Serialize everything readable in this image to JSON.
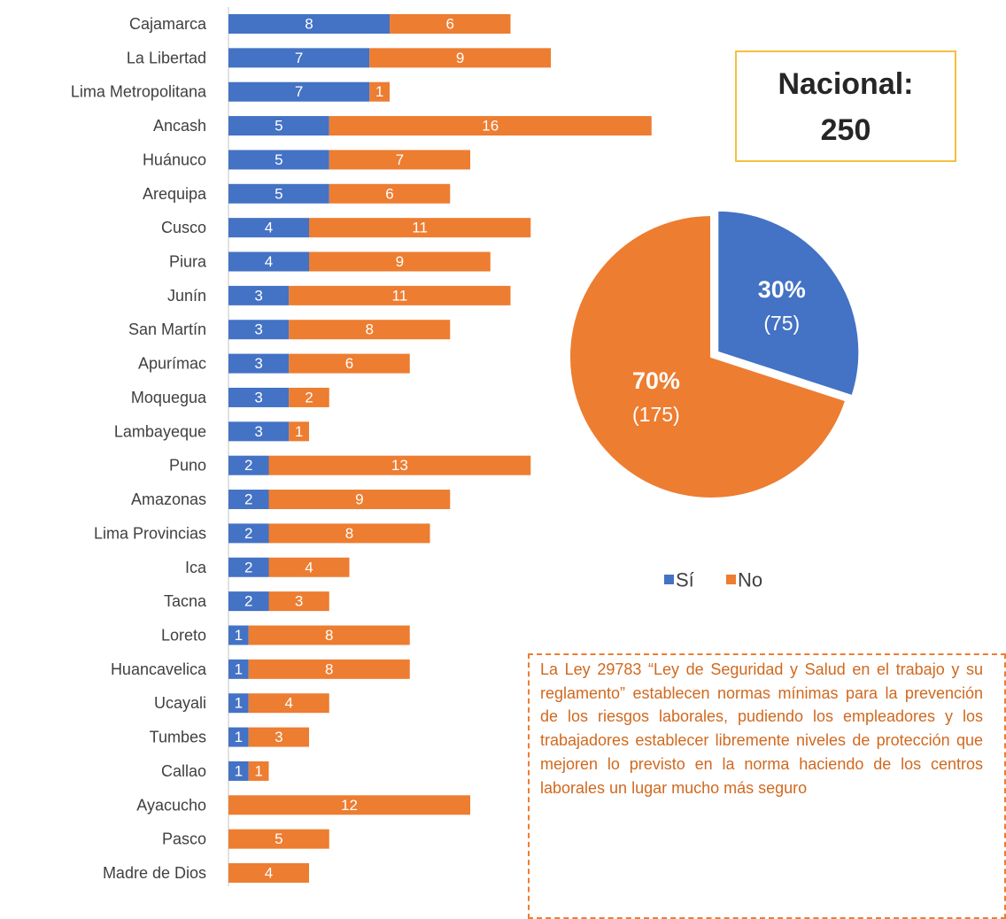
{
  "chart_data": [
    {
      "type": "bar",
      "orientation": "horizontal",
      "stacked": true,
      "categories": [
        "Cajamarca",
        "La Libertad",
        "Lima Metropolitana",
        "Ancash",
        "Huánuco",
        "Arequipa",
        "Cusco",
        "Piura",
        "Junín",
        "San Martín",
        "Apurímac",
        "Moquegua",
        "Lambayeque",
        "Puno",
        "Amazonas",
        "Lima Provincias",
        "Ica",
        "Tacna",
        "Loreto",
        "Huancavelica",
        "Ucayali",
        "Tumbes",
        "Callao",
        "Ayacucho",
        "Pasco",
        "Madre de Dios"
      ],
      "series": [
        {
          "name": "Sí",
          "color": "#4472c4",
          "values": [
            8,
            7,
            7,
            5,
            5,
            5,
            4,
            4,
            3,
            3,
            3,
            3,
            3,
            2,
            2,
            2,
            2,
            2,
            1,
            1,
            1,
            1,
            1,
            null,
            null,
            null
          ]
        },
        {
          "name": "No",
          "color": "#ed7d31",
          "values": [
            6,
            9,
            1,
            16,
            7,
            6,
            11,
            9,
            11,
            8,
            6,
            2,
            1,
            13,
            9,
            8,
            4,
            3,
            8,
            8,
            4,
            3,
            1,
            12,
            5,
            4
          ]
        }
      ],
      "legend": "bottom"
    },
    {
      "type": "pie",
      "values": [
        30,
        70
      ],
      "value_labels": [
        "30%",
        "70%"
      ],
      "counts": [
        75,
        175
      ],
      "count_labels": [
        "(75)",
        "(175)"
      ],
      "colors": [
        "#4472c4",
        "#ed7d31"
      ]
    }
  ],
  "national_label": "Nacional:",
  "national_total": 250,
  "note": "La Ley 29783 “Ley de Seguridad y Salud en el trabajo y su reglamento” establecen normas mínimas para la prevención de los riesgos laborales, pudiendo los empleadores y los trabajadores establecer libremente niveles de protección que mejoren lo previsto en la norma haciendo de los centros laborales un lugar mucho más seguro"
}
